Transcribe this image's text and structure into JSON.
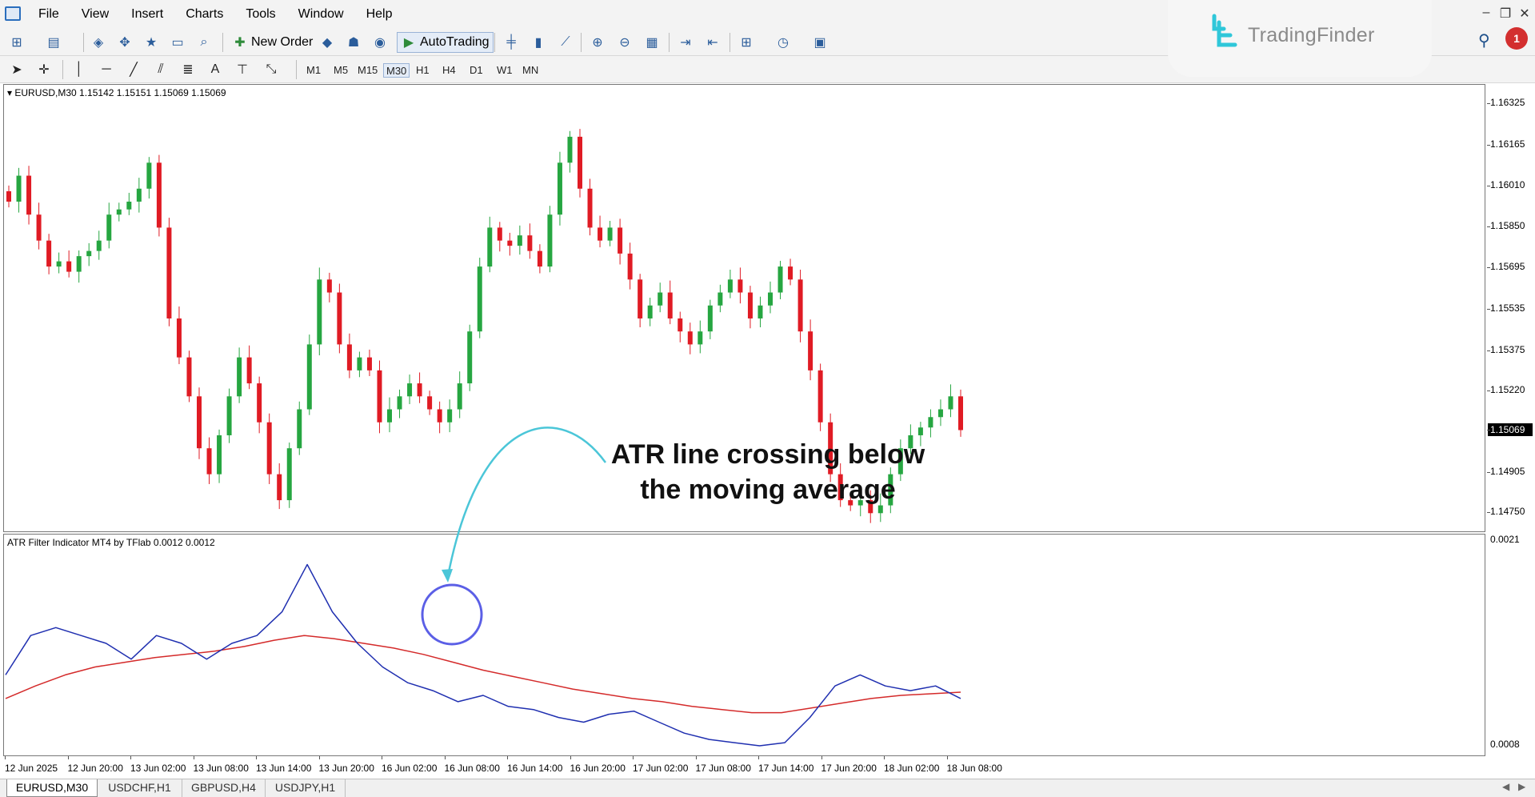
{
  "menu": {
    "items": [
      "File",
      "View",
      "Insert",
      "Charts",
      "Tools",
      "Window",
      "Help"
    ]
  },
  "window_controls": {
    "minimize": "–",
    "restore": "❐",
    "close": "✕"
  },
  "logo": {
    "text": "TradingFinder"
  },
  "notifications": {
    "count": "1"
  },
  "toolbar": {
    "new_order_label": "New Order",
    "autotrading_label": "AutoTrading",
    "timeframes": [
      "M1",
      "M5",
      "M15",
      "M30",
      "H1",
      "H4",
      "D1",
      "W1",
      "MN"
    ],
    "active_timeframe": "M30"
  },
  "main_chart": {
    "title": "EURUSD,M30  1.15142 1.15151 1.15069 1.15069",
    "price_labels": [
      "1.16325",
      "1.16165",
      "1.16010",
      "1.15850",
      "1.15695",
      "1.15535",
      "1.15375",
      "1.15220",
      "1.15069",
      "1.14905",
      "1.14750"
    ],
    "current_price": "1.15069",
    "colors": {
      "bull": "#26a641",
      "bear": "#e01b24"
    }
  },
  "indicator": {
    "title": "ATR Filter Indicator MT4 by TFlab 0.0012 0.0012",
    "scale_labels": [
      "0.0021",
      "0.0008"
    ],
    "colors": {
      "atr": "#1f2fb0",
      "ma": "#d42a2a",
      "circle": "#5b5fe6",
      "arrow": "#4bc6d8"
    }
  },
  "time_axis": {
    "labels": [
      "12 Jun 2025",
      "12 Jun 20:00",
      "13 Jun 02:00",
      "13 Jun 08:00",
      "13 Jun 14:00",
      "13 Jun 20:00",
      "16 Jun 02:00",
      "16 Jun 08:00",
      "16 Jun 14:00",
      "16 Jun 20:00",
      "17 Jun 02:00",
      "17 Jun 08:00",
      "17 Jun 14:00",
      "17 Jun 20:00",
      "18 Jun 02:00",
      "18 Jun 08:00"
    ]
  },
  "annotation": {
    "line1": "ATR line crossing below",
    "line2": "the moving average"
  },
  "tabs": [
    {
      "label": "EURUSD,M30",
      "active": true
    },
    {
      "label": "USDCHF,H1",
      "active": false
    },
    {
      "label": "GBPUSD,H4",
      "active": false
    },
    {
      "label": "USDJPY,H1",
      "active": false
    }
  ],
  "chart_data": {
    "type": "candlestick",
    "symbol": "EURUSD",
    "timeframe": "M30",
    "candles_close": [
      1.1595,
      1.1605,
      1.159,
      1.158,
      1.157,
      1.1572,
      1.1568,
      1.1574,
      1.1576,
      1.158,
      1.159,
      1.1592,
      1.1595,
      1.16,
      1.161,
      1.1585,
      1.155,
      1.1535,
      1.152,
      1.15,
      1.149,
      1.1505,
      1.152,
      1.1535,
      1.1525,
      1.151,
      1.149,
      1.148,
      1.15,
      1.1515,
      1.154,
      1.1565,
      1.156,
      1.154,
      1.153,
      1.1535,
      1.153,
      1.151,
      1.1515,
      1.152,
      1.1525,
      1.152,
      1.1515,
      1.151,
      1.1515,
      1.1525,
      1.1545,
      1.157,
      1.1585,
      1.158,
      1.1578,
      1.1582,
      1.1576,
      1.157,
      1.159,
      1.161,
      1.162,
      1.16,
      1.1585,
      1.158,
      1.1585,
      1.1575,
      1.1565,
      1.155,
      1.1555,
      1.156,
      1.155,
      1.1545,
      1.154,
      1.1545,
      1.1555,
      1.156,
      1.1565,
      1.156,
      1.155,
      1.1555,
      1.156,
      1.157,
      1.1565,
      1.1545,
      1.153,
      1.151,
      1.149,
      1.148,
      1.1478,
      1.148,
      1.1475,
      1.1478,
      1.149,
      1.15,
      1.1505,
      1.1508,
      1.1512,
      1.1515,
      1.152,
      1.1507
    ],
    "atr_line": [
      0.00125,
      0.0015,
      0.00155,
      0.0015,
      0.00145,
      0.00135,
      0.0015,
      0.00145,
      0.00135,
      0.00145,
      0.0015,
      0.00165,
      0.00195,
      0.00165,
      0.00145,
      0.0013,
      0.0012,
      0.00115,
      0.00108,
      0.00112,
      0.00105,
      0.00103,
      0.00098,
      0.00095,
      0.001,
      0.00102,
      0.00095,
      0.00088,
      0.00084,
      0.00082,
      0.0008,
      0.00082,
      0.00098,
      0.00118,
      0.00125,
      0.00118,
      0.00115,
      0.00118,
      0.0011
    ],
    "ma_line": [
      0.0011,
      0.00118,
      0.00125,
      0.0013,
      0.00133,
      0.00136,
      0.00138,
      0.0014,
      0.00143,
      0.00147,
      0.0015,
      0.00148,
      0.00145,
      0.00142,
      0.00138,
      0.00133,
      0.00128,
      0.00124,
      0.0012,
      0.00116,
      0.00113,
      0.0011,
      0.00108,
      0.00105,
      0.00103,
      0.00101,
      0.00101,
      0.00104,
      0.00107,
      0.0011,
      0.00112,
      0.00113,
      0.00114
    ],
    "ylim_main": [
      1.1468,
      1.164
    ],
    "ylim_indicator": [
      0.0008,
      0.0021
    ]
  }
}
